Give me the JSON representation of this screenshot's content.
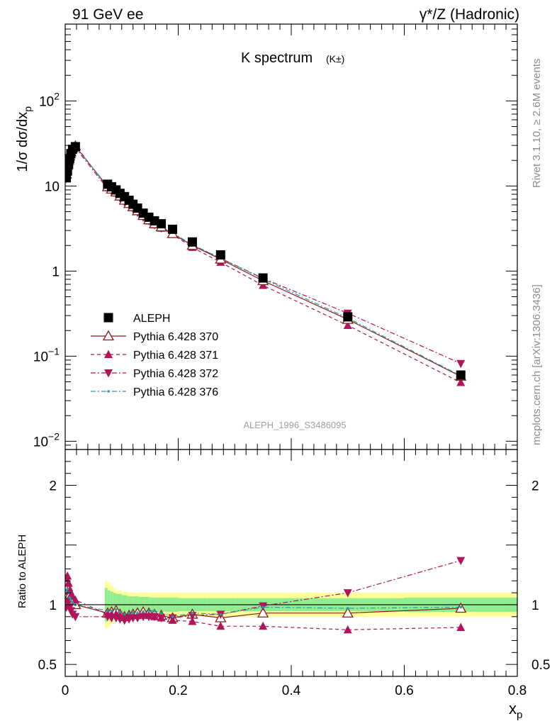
{
  "header": {
    "left": "91 GeV ee",
    "right": "γ*/Z (Hadronic)"
  },
  "side_text": {
    "rivet": "Rivet 3.1.10, ≥ 2.6M events",
    "mcplots": "mcplots.cern.ch [arXiv:1306.3436]"
  },
  "chart_data": [
    {
      "type": "scatter",
      "title": "K spectrum",
      "title_suffix": "(K±)",
      "ylabel": "1/σ dσ/dx_p",
      "watermark": "ALEPH_1996_S3486095",
      "y_scale": "log",
      "xlim": [
        0,
        0.8
      ],
      "ylim": [
        0.008,
        800
      ],
      "y_tick_labels": [
        "10^-2",
        "10^-1",
        "1",
        "10",
        "10^2"
      ],
      "legend_placement": "lower-left",
      "series": [
        {
          "name": "ALEPH",
          "marker": "square-filled",
          "color": "#000000",
          "x": [
            0.002,
            0.004,
            0.006,
            0.008,
            0.01,
            0.013,
            0.018,
            0.075,
            0.082,
            0.09,
            0.097,
            0.105,
            0.113,
            0.12,
            0.128,
            0.138,
            0.148,
            0.158,
            0.17,
            0.19,
            0.225,
            0.275,
            0.35,
            0.5,
            0.7
          ],
          "y": [
            12.5,
            15.0,
            18.0,
            21.0,
            24.0,
            27.0,
            29.0,
            10.5,
            9.8,
            9.0,
            8.2,
            7.5,
            6.8,
            6.1,
            5.5,
            4.8,
            4.3,
            3.9,
            3.6,
            3.1,
            2.2,
            1.55,
            0.83,
            0.29,
            0.06
          ]
        },
        {
          "name": "Pythia 6.428 370",
          "marker": "triangle-up-open",
          "line": "solid",
          "color": "#8b1a1a",
          "x": [
            0.002,
            0.004,
            0.006,
            0.008,
            0.01,
            0.013,
            0.018,
            0.075,
            0.082,
            0.09,
            0.097,
            0.105,
            0.113,
            0.12,
            0.128,
            0.138,
            0.148,
            0.158,
            0.17,
            0.19,
            0.225,
            0.275,
            0.35,
            0.5,
            0.7
          ],
          "y": [
            13.8,
            17.5,
            20.0,
            22.5,
            25.2,
            28.0,
            29.5,
            9.8,
            9.2,
            8.5,
            7.6,
            6.8,
            6.2,
            5.7,
            5.1,
            4.5,
            4.0,
            3.6,
            3.3,
            2.75,
            2.0,
            1.38,
            0.77,
            0.27,
            0.058
          ]
        },
        {
          "name": "Pythia 6.428 371",
          "marker": "triangle-up-filled",
          "line": "dashed",
          "color": "#b0145a",
          "x": [
            0.002,
            0.004,
            0.006,
            0.008,
            0.01,
            0.013,
            0.018,
            0.075,
            0.082,
            0.09,
            0.097,
            0.105,
            0.113,
            0.12,
            0.128,
            0.138,
            0.148,
            0.158,
            0.17,
            0.19,
            0.225,
            0.275,
            0.35,
            0.5,
            0.7
          ],
          "y": [
            15.2,
            18.6,
            21.2,
            23.5,
            26.0,
            28.8,
            30.2,
            9.6,
            9.0,
            8.3,
            7.5,
            6.8,
            6.2,
            5.6,
            5.0,
            4.4,
            3.9,
            3.5,
            3.2,
            2.7,
            1.9,
            1.27,
            0.68,
            0.23,
            0.049
          ]
        },
        {
          "name": "Pythia 6.428 372",
          "marker": "triangle-down-filled",
          "line": "dash-dot",
          "color": "#b0145a",
          "x": [
            0.002,
            0.004,
            0.006,
            0.008,
            0.01,
            0.013,
            0.018,
            0.075,
            0.082,
            0.09,
            0.097,
            0.105,
            0.113,
            0.12,
            0.128,
            0.138,
            0.148,
            0.158,
            0.17,
            0.19,
            0.225,
            0.275,
            0.35,
            0.5,
            0.7
          ],
          "y": [
            12.2,
            15.5,
            18.4,
            21.0,
            23.8,
            26.6,
            28.3,
            9.3,
            8.7,
            8.0,
            7.2,
            6.5,
            6.0,
            5.4,
            4.9,
            4.3,
            3.9,
            3.5,
            3.2,
            2.75,
            2.0,
            1.42,
            0.82,
            0.32,
            0.082
          ]
        },
        {
          "name": "Pythia 6.428 376",
          "marker": "dot",
          "line": "dash-dot",
          "color": "#20a0a0",
          "x": [
            0.002,
            0.004,
            0.006,
            0.008,
            0.01,
            0.013,
            0.018,
            0.075,
            0.082,
            0.09,
            0.097,
            0.105,
            0.113,
            0.12,
            0.128,
            0.138,
            0.148,
            0.158,
            0.17,
            0.19,
            0.225,
            0.275,
            0.35,
            0.5,
            0.7
          ],
          "y": [
            14.0,
            17.0,
            19.8,
            22.3,
            25.0,
            27.5,
            29.0,
            10.0,
            9.3,
            8.6,
            7.7,
            6.9,
            6.3,
            5.7,
            5.1,
            4.5,
            4.1,
            3.7,
            3.35,
            2.8,
            2.05,
            1.42,
            0.81,
            0.28,
            0.059
          ]
        }
      ]
    },
    {
      "type": "line",
      "ylabel": "Ratio to ALEPH",
      "xlabel": "x_p",
      "xlim": [
        0,
        0.8
      ],
      "ylim": [
        0.4,
        2.3
      ],
      "x_ticks": [
        0,
        0.2,
        0.4,
        0.6,
        0.8
      ],
      "x_tick_labels": [
        "0",
        "0.2",
        "0.4",
        "0.6",
        "0.8"
      ],
      "y_ticks": [
        0.5,
        1,
        2
      ],
      "y_tick_labels": [
        "0.5",
        "1",
        "2"
      ],
      "uncertainty_bands": {
        "edges": [
          0.07,
          0.075,
          0.08,
          0.085,
          0.09,
          0.1,
          0.11,
          0.12,
          0.13,
          0.14,
          0.15,
          0.16,
          0.18,
          0.2,
          0.25,
          0.3,
          0.4,
          0.6,
          0.8
        ],
        "inner_half_width": [
          0.14,
          0.12,
          0.11,
          0.1,
          0.09,
          0.08,
          0.07,
          0.07,
          0.065,
          0.065,
          0.06,
          0.06,
          0.06,
          0.055,
          0.055,
          0.055,
          0.055,
          0.06,
          0.06
        ],
        "outer_half_width": [
          0.2,
          0.18,
          0.16,
          0.14,
          0.12,
          0.11,
          0.1,
          0.1,
          0.1,
          0.1,
          0.1,
          0.1,
          0.1,
          0.1,
          0.1,
          0.1,
          0.1,
          0.1,
          0.1
        ],
        "inner_color": "#90ee90",
        "outer_color": "#ffff99"
      },
      "series": [
        {
          "name": "Pythia 6.428 370",
          "x": [
            0.002,
            0.004,
            0.006,
            0.008,
            0.01,
            0.013,
            0.018,
            0.075,
            0.082,
            0.09,
            0.097,
            0.105,
            0.113,
            0.12,
            0.128,
            0.138,
            0.148,
            0.158,
            0.17,
            0.19,
            0.225,
            0.275,
            0.35,
            0.5,
            0.7
          ],
          "y": [
            1.1,
            1.15,
            1.12,
            1.08,
            1.05,
            1.02,
            1.0,
            0.93,
            0.94,
            0.95,
            0.92,
            0.9,
            0.91,
            0.92,
            0.93,
            0.94,
            0.93,
            0.92,
            0.91,
            0.89,
            0.92,
            0.89,
            0.93,
            0.93,
            0.97
          ]
        },
        {
          "name": "Pythia 6.428 371",
          "x": [
            0.002,
            0.004,
            0.006,
            0.008,
            0.01,
            0.013,
            0.018,
            0.075,
            0.082,
            0.09,
            0.097,
            0.105,
            0.113,
            0.12,
            0.128,
            0.138,
            0.148,
            0.158,
            0.17,
            0.19,
            0.225,
            0.275,
            0.35,
            0.5,
            0.7
          ],
          "y": [
            1.22,
            1.24,
            1.18,
            1.12,
            1.08,
            1.07,
            1.04,
            0.92,
            0.92,
            0.92,
            0.91,
            0.9,
            0.91,
            0.91,
            0.91,
            0.92,
            0.91,
            0.9,
            0.89,
            0.87,
            0.86,
            0.82,
            0.82,
            0.79,
            0.81
          ]
        },
        {
          "name": "Pythia 6.428 372",
          "x": [
            0.002,
            0.004,
            0.006,
            0.008,
            0.01,
            0.013,
            0.018,
            0.075,
            0.082,
            0.09,
            0.097,
            0.105,
            0.113,
            0.12,
            0.128,
            0.138,
            0.148,
            0.158,
            0.17,
            0.19,
            0.225,
            0.275,
            0.35,
            0.5,
            0.7
          ],
          "y": [
            0.98,
            1.03,
            1.02,
            0.98,
            0.95,
            0.92,
            0.9,
            0.9,
            0.89,
            0.89,
            0.88,
            0.87,
            0.88,
            0.89,
            0.89,
            0.9,
            0.9,
            0.9,
            0.89,
            0.89,
            0.91,
            0.92,
            0.99,
            1.1,
            1.37
          ]
        },
        {
          "name": "Pythia 6.428 376",
          "x": [
            0.002,
            0.004,
            0.006,
            0.008,
            0.01,
            0.013,
            0.018,
            0.075,
            0.082,
            0.09,
            0.097,
            0.105,
            0.113,
            0.12,
            0.128,
            0.138,
            0.148,
            0.158,
            0.17,
            0.19,
            0.225,
            0.275,
            0.35,
            0.5,
            0.7
          ],
          "y": [
            1.12,
            1.13,
            1.1,
            1.06,
            1.04,
            1.02,
            1.0,
            0.95,
            0.95,
            0.96,
            0.94,
            0.92,
            0.93,
            0.93,
            0.93,
            0.94,
            0.95,
            0.95,
            0.93,
            0.9,
            0.93,
            0.92,
            0.98,
            0.97,
            0.98
          ]
        }
      ]
    }
  ]
}
